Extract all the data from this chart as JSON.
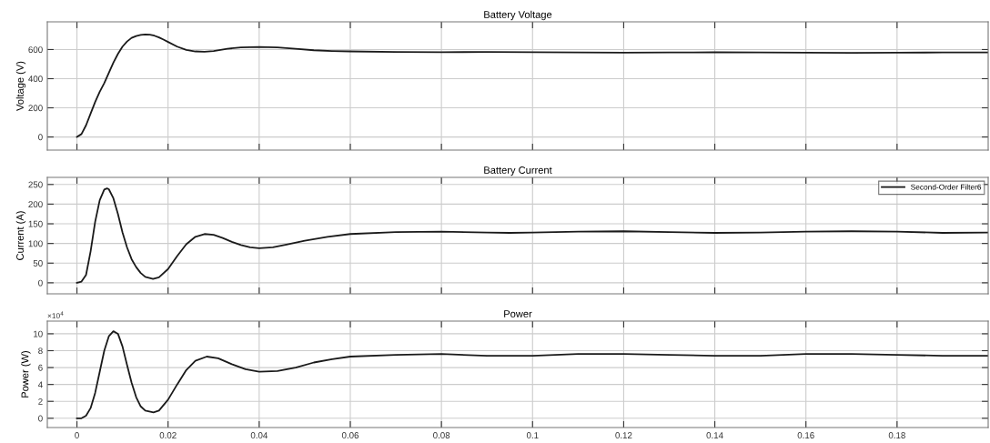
{
  "chart_data": [
    {
      "type": "line",
      "title": "Battery Voltage",
      "ylabel": "Voltage (V)",
      "grid": true,
      "tick_labels": "y",
      "line_style": "solid",
      "marker": "none",
      "xlim": [
        -0.0065,
        0.2
      ],
      "xticks": [
        0,
        0.02,
        0.04,
        0.06,
        0.08,
        0.1,
        0.12,
        0.14,
        0.16,
        0.18
      ],
      "ylim": [
        -90,
        790
      ],
      "yticks": [
        0,
        200,
        400,
        600
      ],
      "x": [
        0,
        0.001,
        0.002,
        0.003,
        0.004,
        0.005,
        0.006,
        0.007,
        0.008,
        0.009,
        0.01,
        0.011,
        0.012,
        0.013,
        0.014,
        0.015,
        0.016,
        0.017,
        0.018,
        0.019,
        0.02,
        0.022,
        0.024,
        0.026,
        0.028,
        0.03,
        0.033,
        0.036,
        0.04,
        0.044,
        0.048,
        0.052,
        0.056,
        0.06,
        0.07,
        0.08,
        0.09,
        0.1,
        0.11,
        0.12,
        0.13,
        0.14,
        0.15,
        0.16,
        0.17,
        0.18,
        0.19,
        0.2
      ],
      "series": [
        {
          "color": "#1a1a1a",
          "values": [
            0,
            20,
            80,
            160,
            240,
            310,
            370,
            440,
            510,
            570,
            620,
            655,
            680,
            693,
            700,
            703,
            702,
            695,
            683,
            668,
            652,
            620,
            597,
            587,
            585,
            590,
            605,
            615,
            618,
            615,
            605,
            595,
            590,
            587,
            583,
            582,
            583,
            582,
            580,
            579,
            580,
            581,
            580,
            579,
            577,
            578,
            580,
            580
          ]
        }
      ]
    },
    {
      "type": "line",
      "title": "Battery Current",
      "ylabel": "Current (A)",
      "grid": true,
      "tick_labels": "y",
      "legend": "top right",
      "line_style": "solid",
      "marker": "none",
      "xlim": [
        -0.0065,
        0.2
      ],
      "xticks": [
        0,
        0.02,
        0.04,
        0.06,
        0.08,
        0.1,
        0.12,
        0.14,
        0.16,
        0.18
      ],
      "ylim": [
        -28,
        268
      ],
      "yticks": [
        0,
        50,
        100,
        150,
        200,
        250
      ],
      "x": [
        0,
        0.001,
        0.002,
        0.003,
        0.004,
        0.005,
        0.006,
        0.0066,
        0.007,
        0.008,
        0.009,
        0.01,
        0.011,
        0.012,
        0.013,
        0.014,
        0.015,
        0.0167,
        0.018,
        0.02,
        0.022,
        0.024,
        0.026,
        0.028,
        0.03,
        0.032,
        0.034,
        0.036,
        0.038,
        0.04,
        0.043,
        0.046,
        0.05,
        0.055,
        0.06,
        0.07,
        0.08,
        0.09,
        0.095,
        0.1,
        0.11,
        0.12,
        0.13,
        0.14,
        0.15,
        0.16,
        0.17,
        0.18,
        0.19,
        0.2
      ],
      "series": [
        {
          "name": "Second-Order Filter6",
          "color": "#1a1a1a",
          "values": [
            0,
            3,
            20,
            80,
            155,
            210,
            237,
            240,
            238,
            215,
            175,
            128,
            90,
            60,
            40,
            25,
            15,
            10,
            14,
            35,
            68,
            98,
            117,
            124,
            122,
            114,
            104,
            96,
            90,
            88,
            90,
            97,
            107,
            117,
            124,
            129,
            130,
            128,
            127,
            128,
            130,
            131,
            129,
            127,
            128,
            130,
            131,
            130,
            127,
            128
          ]
        }
      ]
    },
    {
      "type": "line",
      "title": "Power",
      "ylabel": "Power (W)",
      "grid": true,
      "line_style": "solid",
      "marker": "none",
      "annotations": [
        "×10$^{4}$"
      ],
      "xlim": [
        -0.0065,
        0.2
      ],
      "xticks": [
        0,
        0.02,
        0.04,
        0.06,
        0.08,
        0.1,
        0.12,
        0.14,
        0.16,
        0.18
      ],
      "ylim": [
        -1.1,
        11.5
      ],
      "yticks": [
        0,
        2,
        4,
        6,
        8,
        10
      ],
      "x": [
        0,
        0.001,
        0.002,
        0.003,
        0.004,
        0.005,
        0.006,
        0.007,
        0.008,
        0.009,
        0.01,
        0.011,
        0.012,
        0.013,
        0.014,
        0.015,
        0.0168,
        0.018,
        0.02,
        0.022,
        0.024,
        0.026,
        0.0285,
        0.031,
        0.034,
        0.037,
        0.04,
        0.044,
        0.048,
        0.052,
        0.056,
        0.06,
        0.07,
        0.08,
        0.09,
        0.095,
        0.1,
        0.11,
        0.12,
        0.13,
        0.14,
        0.15,
        0.16,
        0.17,
        0.18,
        0.19,
        0.2
      ],
      "series": [
        {
          "color": "#1a1a1a",
          "values": [
            0,
            0,
            0.3,
            1.2,
            3,
            5.5,
            8,
            9.7,
            10.3,
            10,
            8.5,
            6.3,
            4.2,
            2.5,
            1.4,
            0.9,
            0.7,
            0.9,
            2.2,
            4,
            5.7,
            6.8,
            7.3,
            7.1,
            6.4,
            5.8,
            5.5,
            5.6,
            6,
            6.6,
            7,
            7.3,
            7.5,
            7.6,
            7.4,
            7.4,
            7.4,
            7.6,
            7.6,
            7.5,
            7.4,
            7.4,
            7.6,
            7.6,
            7.5,
            7.4,
            7.4
          ]
        }
      ]
    }
  ]
}
